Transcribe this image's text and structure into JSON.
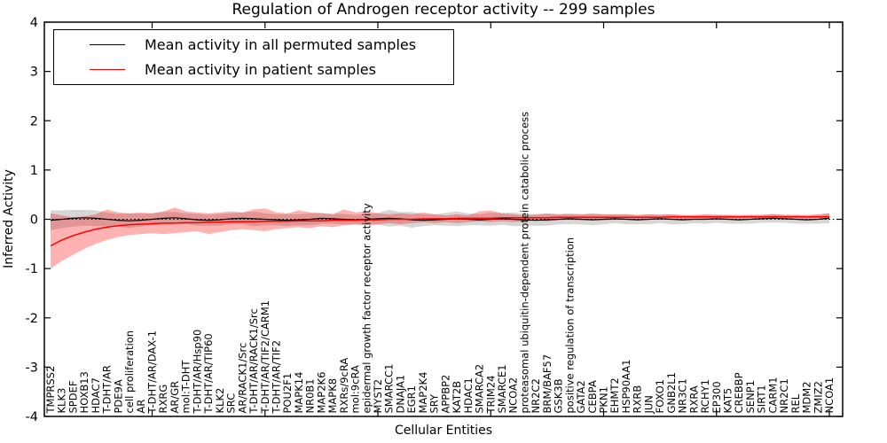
{
  "figure": {
    "title": "Regulation of Androgen receptor activity -- 299 samples",
    "xlabel": "Cellular Entities",
    "ylabel": "Inferred Activity",
    "legend": [
      {
        "label": "Mean activity in all permuted samples",
        "color": "#000000"
      },
      {
        "label": "Mean activity in patient samples",
        "color": "#ff0000"
      }
    ]
  },
  "chart_data": {
    "type": "line",
    "title": "Regulation of Androgen receptor activity -- 299 samples",
    "xlabel": "Cellular Entities",
    "ylabel": "Inferred Activity",
    "ylim": [
      -4,
      4
    ],
    "yticks": [
      -4,
      -3,
      -2,
      -1,
      0,
      1,
      2,
      3,
      4
    ],
    "xtick_indices": [
      9,
      19,
      29,
      39,
      49,
      59,
      69
    ],
    "grid": false,
    "legend_position": "upper left",
    "zero_line": {
      "y": 0,
      "style": "dotted",
      "color": "#000000"
    },
    "categories": [
      "TMPRSS2",
      "KLK3",
      "SPDEF",
      "HOXB13",
      "HDAC7",
      "T-DHT/AR",
      "PDE9A",
      "cell proliferation",
      "AR",
      "T-DHT/AR/DAX-1",
      "RXRG",
      "AR/GR",
      "mol:T-DHT",
      "T-DHT/AR/Hsp90",
      "T-DHT/AR/TIP60",
      "KLK2",
      "SRC",
      "AR/RACK1/Src",
      "T-DHT/AR/RACK1/Src",
      "T-DHT/AR/TIF2/CARM1",
      "T-DHT/AR/TIF2",
      "POU2F1",
      "MAPK14",
      "NR0B1",
      "MAP2K6",
      "MAPK8",
      "RXRs/9cRA",
      "mol:9cRA",
      "epidermal growth factor receptor activity",
      "MYST2",
      "SMARCC1",
      "DNAJA1",
      "EGR1",
      "MAP2K4",
      "SRY",
      "APPBP2",
      "KAT2B",
      "HDAC1",
      "SMARCA2",
      "TRIM24",
      "SMARCE1",
      "NCOA2",
      "proteasomal ubiquitin-dependent protein catabolic process",
      "NR2C2",
      "BRM/BAF57",
      "GSK3B",
      "positive regulation of transcription",
      "GATA2",
      "CEBPA",
      "PKN1",
      "EHMT2",
      "HSP90AA1",
      "RXRB",
      "JUN",
      "FOXO1",
      "GNB2L1",
      "NR3C1",
      "RXRA",
      "RCHY1",
      "EP300",
      "KAT5",
      "CREBBP",
      "SENP1",
      "SIRT1",
      "CARM1",
      "NR2C1",
      "REL",
      "MDM2",
      "ZMIZ2",
      "NCOA1"
    ],
    "series": [
      {
        "name": "Mean activity in all permuted samples",
        "color": "#000000",
        "line_width": 1.2,
        "band_color": "rgba(128,128,128,0.32)",
        "values": [
          -0.02,
          0.0,
          0.02,
          0.03,
          0.02,
          0.0,
          -0.02,
          -0.03,
          -0.02,
          0.0,
          0.02,
          0.03,
          0.01,
          -0.01,
          -0.02,
          -0.01,
          0.01,
          0.02,
          0.01,
          0.0,
          -0.01,
          -0.02,
          -0.01,
          0.0,
          0.02,
          0.01,
          0.0,
          -0.01,
          0.0,
          0.01,
          0.02,
          0.01,
          -0.01,
          -0.02,
          -0.01,
          0.0,
          0.01,
          0.0,
          -0.01,
          0.0,
          0.01,
          0.0,
          -0.01,
          -0.02,
          -0.01,
          0.0,
          0.01,
          0.0,
          -0.01,
          0.0,
          0.01,
          0.0,
          -0.01,
          0.0,
          0.01,
          0.0,
          -0.01,
          0.0,
          0.0,
          0.01,
          0.0,
          -0.01,
          0.0,
          0.01,
          0.02,
          0.01,
          0.0,
          -0.01,
          0.0,
          0.02
        ],
        "band_half_width": [
          0.2,
          0.18,
          0.17,
          0.16,
          0.16,
          0.14,
          0.13,
          0.15,
          0.13,
          0.12,
          0.13,
          0.12,
          0.11,
          0.12,
          0.11,
          0.12,
          0.11,
          0.12,
          0.15,
          0.12,
          0.11,
          0.12,
          0.11,
          0.12,
          0.11,
          0.1,
          0.11,
          0.1,
          0.11,
          0.12,
          0.17,
          0.14,
          0.16,
          0.12,
          0.11,
          0.13,
          0.15,
          0.12,
          0.11,
          0.13,
          0.12,
          0.14,
          0.12,
          0.11,
          0.12,
          0.1,
          0.11,
          0.1,
          0.11,
          0.1,
          0.09,
          0.1,
          0.09,
          0.1,
          0.09,
          0.1,
          0.09,
          0.08,
          0.09,
          0.08,
          0.09,
          0.08,
          0.09,
          0.08,
          0.09,
          0.08,
          0.09,
          0.08,
          0.09,
          0.1
        ]
      },
      {
        "name": "Mean activity in patient samples",
        "color": "#ff0000",
        "line_width": 1.5,
        "band_color": "rgba(255,0,0,0.30)",
        "values": [
          -0.54,
          -0.42,
          -0.33,
          -0.26,
          -0.2,
          -0.16,
          -0.13,
          -0.11,
          -0.1,
          -0.09,
          -0.08,
          -0.08,
          -0.07,
          -0.07,
          -0.06,
          -0.06,
          -0.05,
          -0.05,
          -0.05,
          -0.04,
          -0.04,
          -0.04,
          -0.03,
          -0.03,
          -0.03,
          -0.02,
          -0.02,
          -0.02,
          -0.01,
          -0.01,
          0.0,
          0.0,
          0.0,
          0.01,
          0.01,
          0.01,
          0.02,
          0.02,
          0.02,
          0.02,
          0.03,
          0.03,
          0.03,
          0.03,
          0.03,
          0.04,
          0.04,
          0.04,
          0.04,
          0.04,
          0.04,
          0.04,
          0.04,
          0.04,
          0.04,
          0.05,
          0.05,
          0.05,
          0.05,
          0.05,
          0.05,
          0.05,
          0.05,
          0.05,
          0.05,
          0.05,
          0.05,
          0.05,
          0.05,
          0.05
        ],
        "band_lower": [
          -1.0,
          -0.85,
          -0.72,
          -0.6,
          -0.5,
          -0.42,
          -0.36,
          -0.32,
          -0.3,
          -0.28,
          -0.3,
          -0.28,
          -0.26,
          -0.24,
          -0.3,
          -0.26,
          -0.22,
          -0.2,
          -0.22,
          -0.24,
          -0.2,
          -0.18,
          -0.16,
          -0.18,
          -0.14,
          -0.16,
          -0.12,
          -0.1,
          -0.12,
          -0.1,
          -0.08,
          -0.1,
          -0.08,
          -0.06,
          -0.08,
          -0.06,
          -0.08,
          -0.06,
          -0.04,
          -0.06,
          -0.04,
          -0.06,
          -0.04,
          -0.02,
          -0.04,
          -0.02,
          -0.01,
          -0.02,
          -0.01,
          -0.02,
          -0.01,
          0.0,
          0.0,
          0.01,
          0.0,
          0.01,
          0.0,
          0.01,
          0.01,
          0.01,
          0.01,
          0.01,
          0.02,
          0.01,
          0.02,
          0.01,
          0.02,
          0.01,
          0.02,
          0.0
        ],
        "band_upper": [
          0.12,
          0.08,
          0.04,
          0.06,
          0.1,
          0.2,
          0.14,
          0.12,
          0.14,
          0.12,
          0.16,
          0.24,
          0.16,
          0.14,
          0.12,
          0.14,
          0.16,
          0.14,
          0.2,
          0.22,
          0.14,
          0.12,
          0.18,
          0.14,
          0.12,
          0.1,
          0.2,
          0.14,
          0.16,
          0.12,
          0.1,
          0.12,
          0.1,
          0.14,
          0.1,
          0.08,
          0.1,
          0.08,
          0.16,
          0.18,
          0.12,
          0.1,
          0.08,
          0.1,
          0.12,
          0.1,
          0.1,
          0.1,
          0.12,
          0.1,
          0.1,
          0.1,
          0.09,
          0.1,
          0.09,
          0.1,
          0.09,
          0.09,
          0.1,
          0.09,
          0.09,
          0.09,
          0.09,
          0.09,
          0.1,
          0.09,
          0.09,
          0.09,
          0.1,
          0.12
        ]
      }
    ]
  }
}
